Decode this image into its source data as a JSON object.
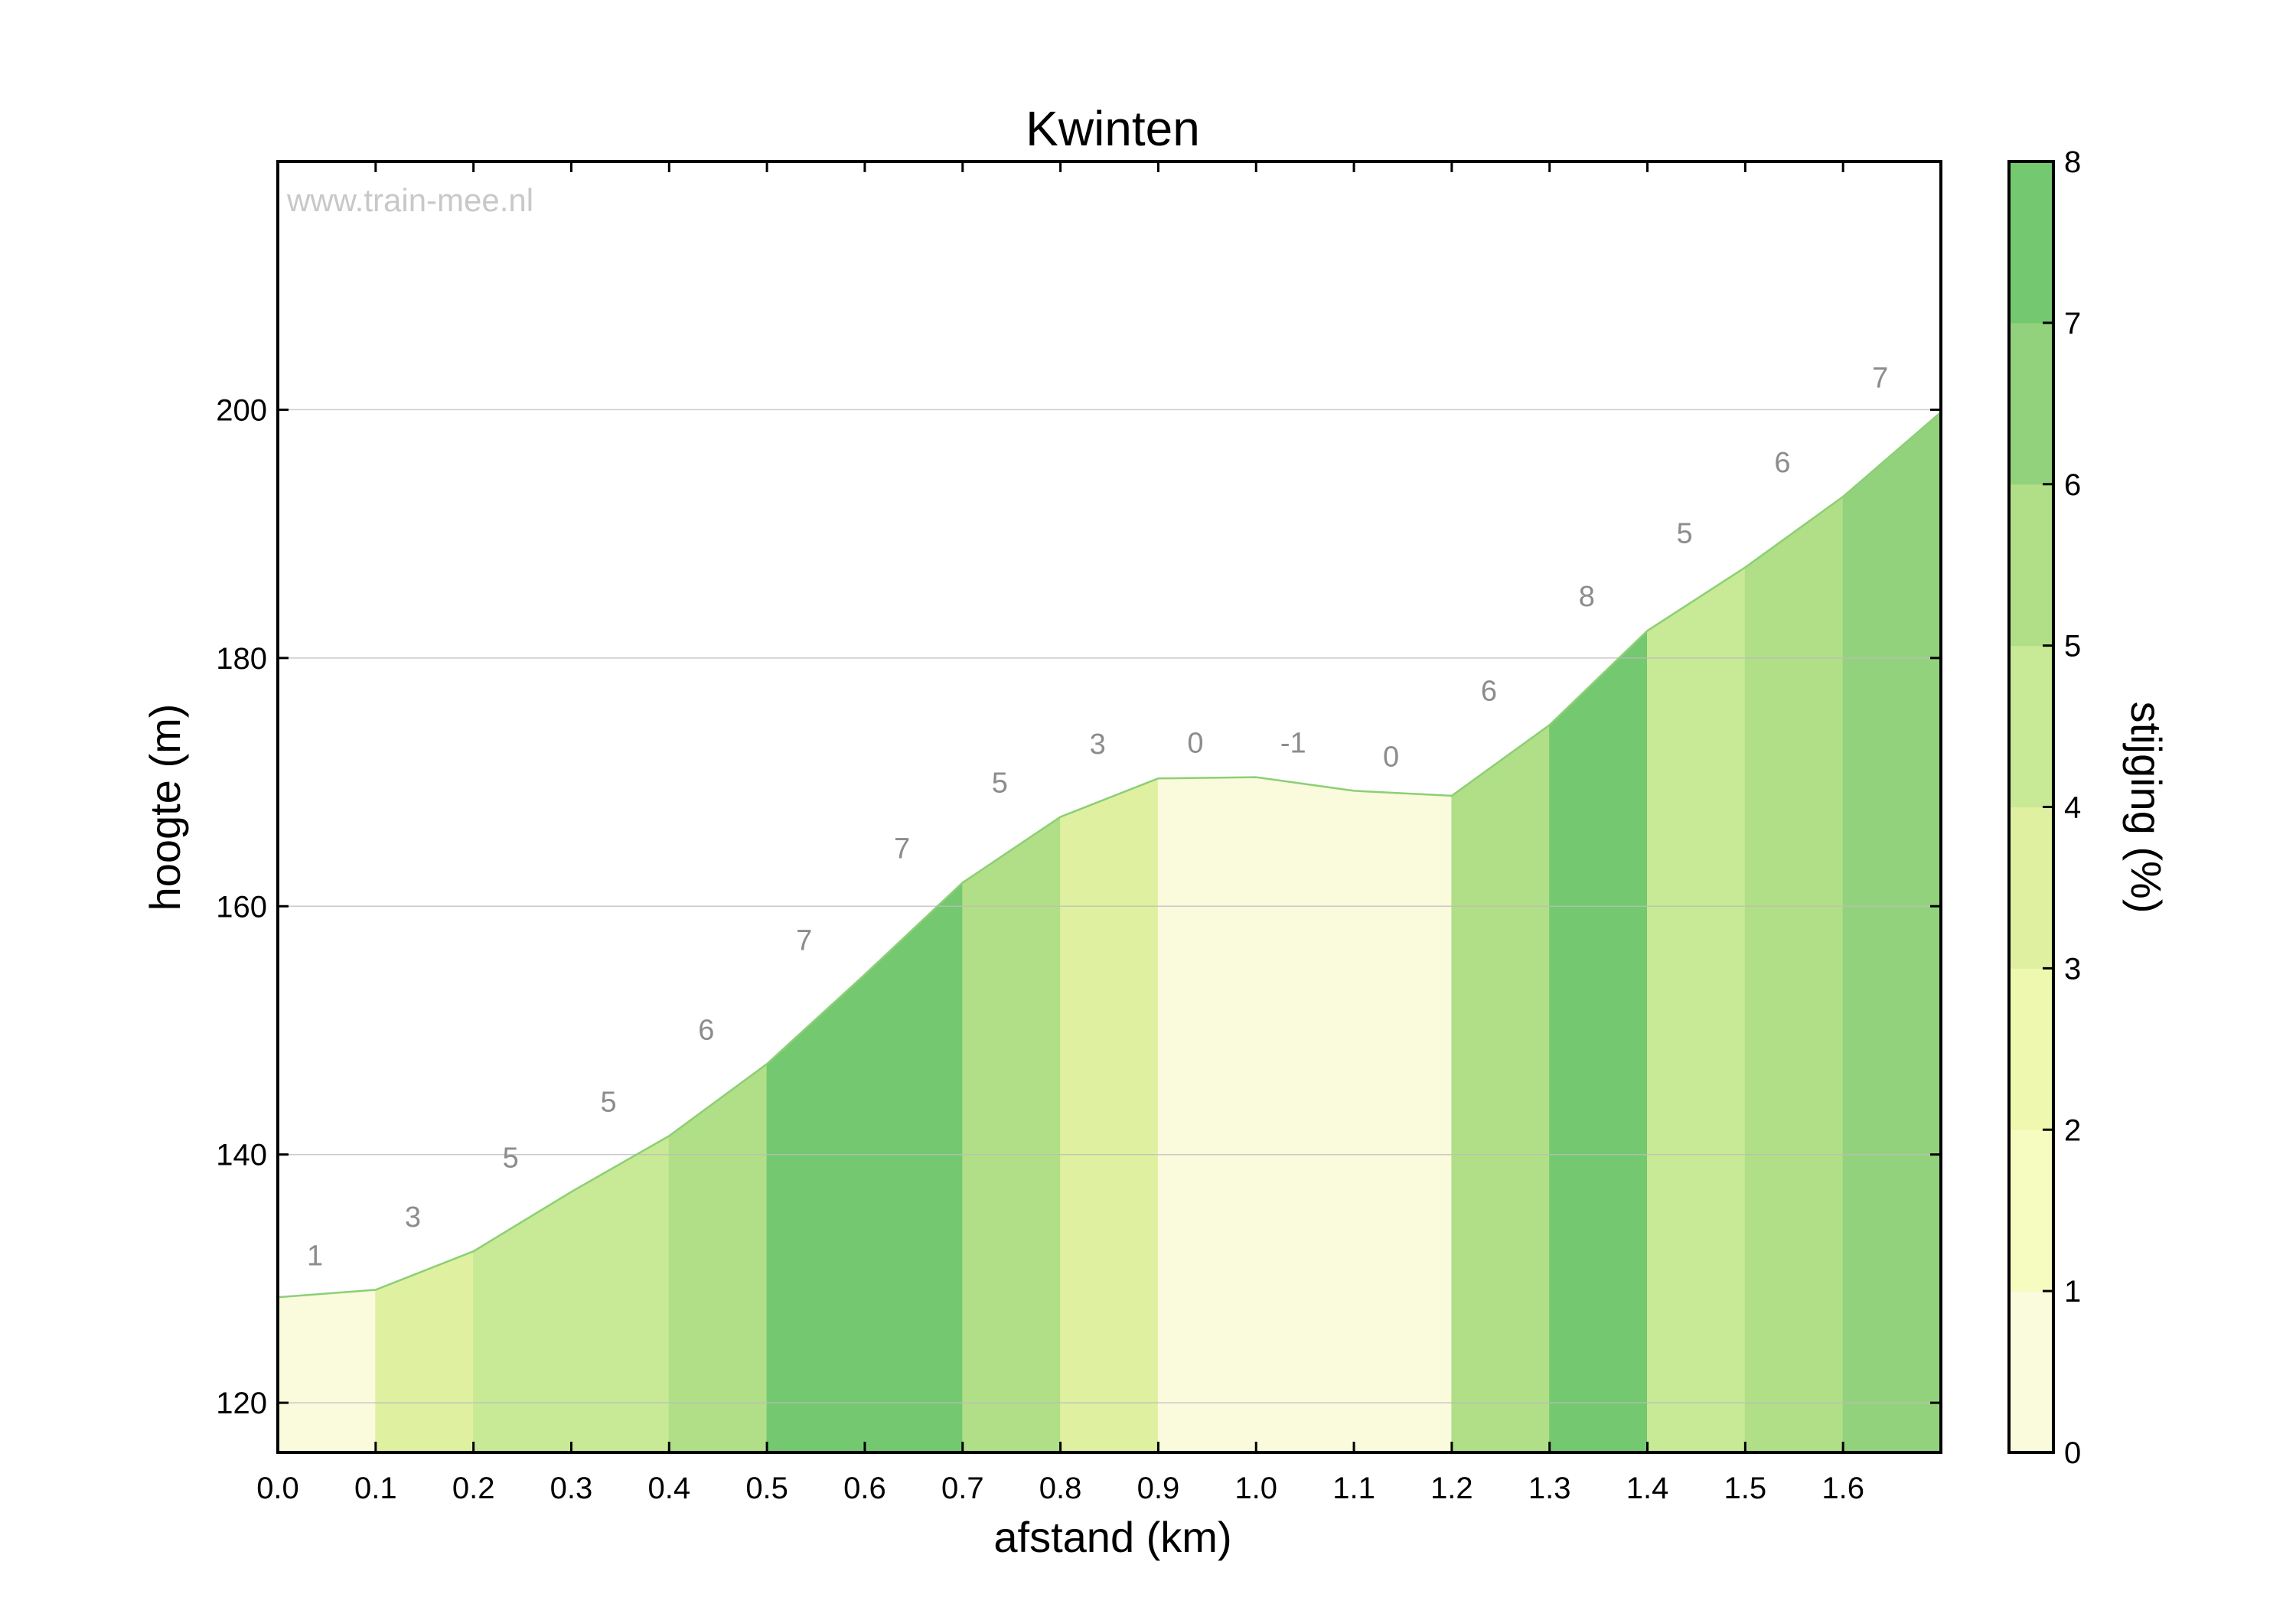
{
  "chart_data": {
    "type": "area",
    "title": "Kwinten",
    "watermark": "www.train-mee.nl",
    "xlabel": "afstand (km)",
    "ylabel": "hoogte (m)",
    "colorbar_label": "stijging (%)",
    "xlim": [
      0,
      1.7
    ],
    "ylim": [
      116,
      220
    ],
    "xticks": [
      "0.0",
      "0.1",
      "0.2",
      "0.3",
      "0.4",
      "0.5",
      "0.6",
      "0.7",
      "0.8",
      "0.9",
      "1.0",
      "1.1",
      "1.2",
      "1.3",
      "1.4",
      "1.5",
      "1.6"
    ],
    "yticks": [
      "120",
      "140",
      "160",
      "180",
      "200"
    ],
    "colorbar_ticks": [
      "0",
      "1",
      "2",
      "3",
      "4",
      "5",
      "6",
      "7",
      "8"
    ],
    "colorbar_levels": [
      "#fafadc",
      "#f6fbc0",
      "#eef8ae",
      "#dff1a0",
      "#c8e995",
      "#b1df87",
      "#93d27c",
      "#74c870"
    ],
    "grid": "horizontal",
    "profile": [
      {
        "x": 0.0,
        "y": 128.5
      },
      {
        "x": 0.1,
        "y": 129.1
      },
      {
        "x": 0.2,
        "y": 132.2
      },
      {
        "x": 0.3,
        "y": 137.0
      },
      {
        "x": 0.4,
        "y": 141.5
      },
      {
        "x": 0.5,
        "y": 147.3
      },
      {
        "x": 0.6,
        "y": 154.5
      },
      {
        "x": 0.7,
        "y": 161.9
      },
      {
        "x": 0.8,
        "y": 167.2
      },
      {
        "x": 0.9,
        "y": 170.3
      },
      {
        "x": 1.0,
        "y": 170.4
      },
      {
        "x": 1.1,
        "y": 169.3
      },
      {
        "x": 1.2,
        "y": 168.9
      },
      {
        "x": 1.3,
        "y": 174.6
      },
      {
        "x": 1.4,
        "y": 182.2
      },
      {
        "x": 1.5,
        "y": 187.3
      },
      {
        "x": 1.6,
        "y": 193.0
      },
      {
        "x": 1.7,
        "y": 199.8
      }
    ],
    "segments": [
      {
        "start": 0.0,
        "end": 0.1,
        "grade": "1",
        "color": "#fafadc"
      },
      {
        "start": 0.1,
        "end": 0.2,
        "grade": "3",
        "color": "#dff1a0"
      },
      {
        "start": 0.2,
        "end": 0.3,
        "grade": "5",
        "color": "#c8e995"
      },
      {
        "start": 0.3,
        "end": 0.4,
        "grade": "5",
        "color": "#c8e995"
      },
      {
        "start": 0.4,
        "end": 0.5,
        "grade": "6",
        "color": "#b1df87"
      },
      {
        "start": 0.5,
        "end": 0.6,
        "grade": "7",
        "color": "#74c870"
      },
      {
        "start": 0.6,
        "end": 0.7,
        "grade": "7",
        "color": "#74c870"
      },
      {
        "start": 0.7,
        "end": 0.8,
        "grade": "5",
        "color": "#b1df87"
      },
      {
        "start": 0.8,
        "end": 0.9,
        "grade": "3",
        "color": "#dff1a0"
      },
      {
        "start": 0.9,
        "end": 1.0,
        "grade": "0",
        "color": "#fafadc"
      },
      {
        "start": 1.0,
        "end": 1.1,
        "grade": "-1",
        "color": "#fafadc"
      },
      {
        "start": 1.1,
        "end": 1.2,
        "grade": "0",
        "color": "#fafadc"
      },
      {
        "start": 1.2,
        "end": 1.3,
        "grade": "6",
        "color": "#b1df87"
      },
      {
        "start": 1.3,
        "end": 1.4,
        "grade": "8",
        "color": "#74c870"
      },
      {
        "start": 1.4,
        "end": 1.5,
        "grade": "5",
        "color": "#c8e995"
      },
      {
        "start": 1.5,
        "end": 1.6,
        "grade": "6",
        "color": "#b1df87"
      },
      {
        "start": 1.6,
        "end": 1.7,
        "grade": "7",
        "color": "#93d27c"
      }
    ]
  }
}
